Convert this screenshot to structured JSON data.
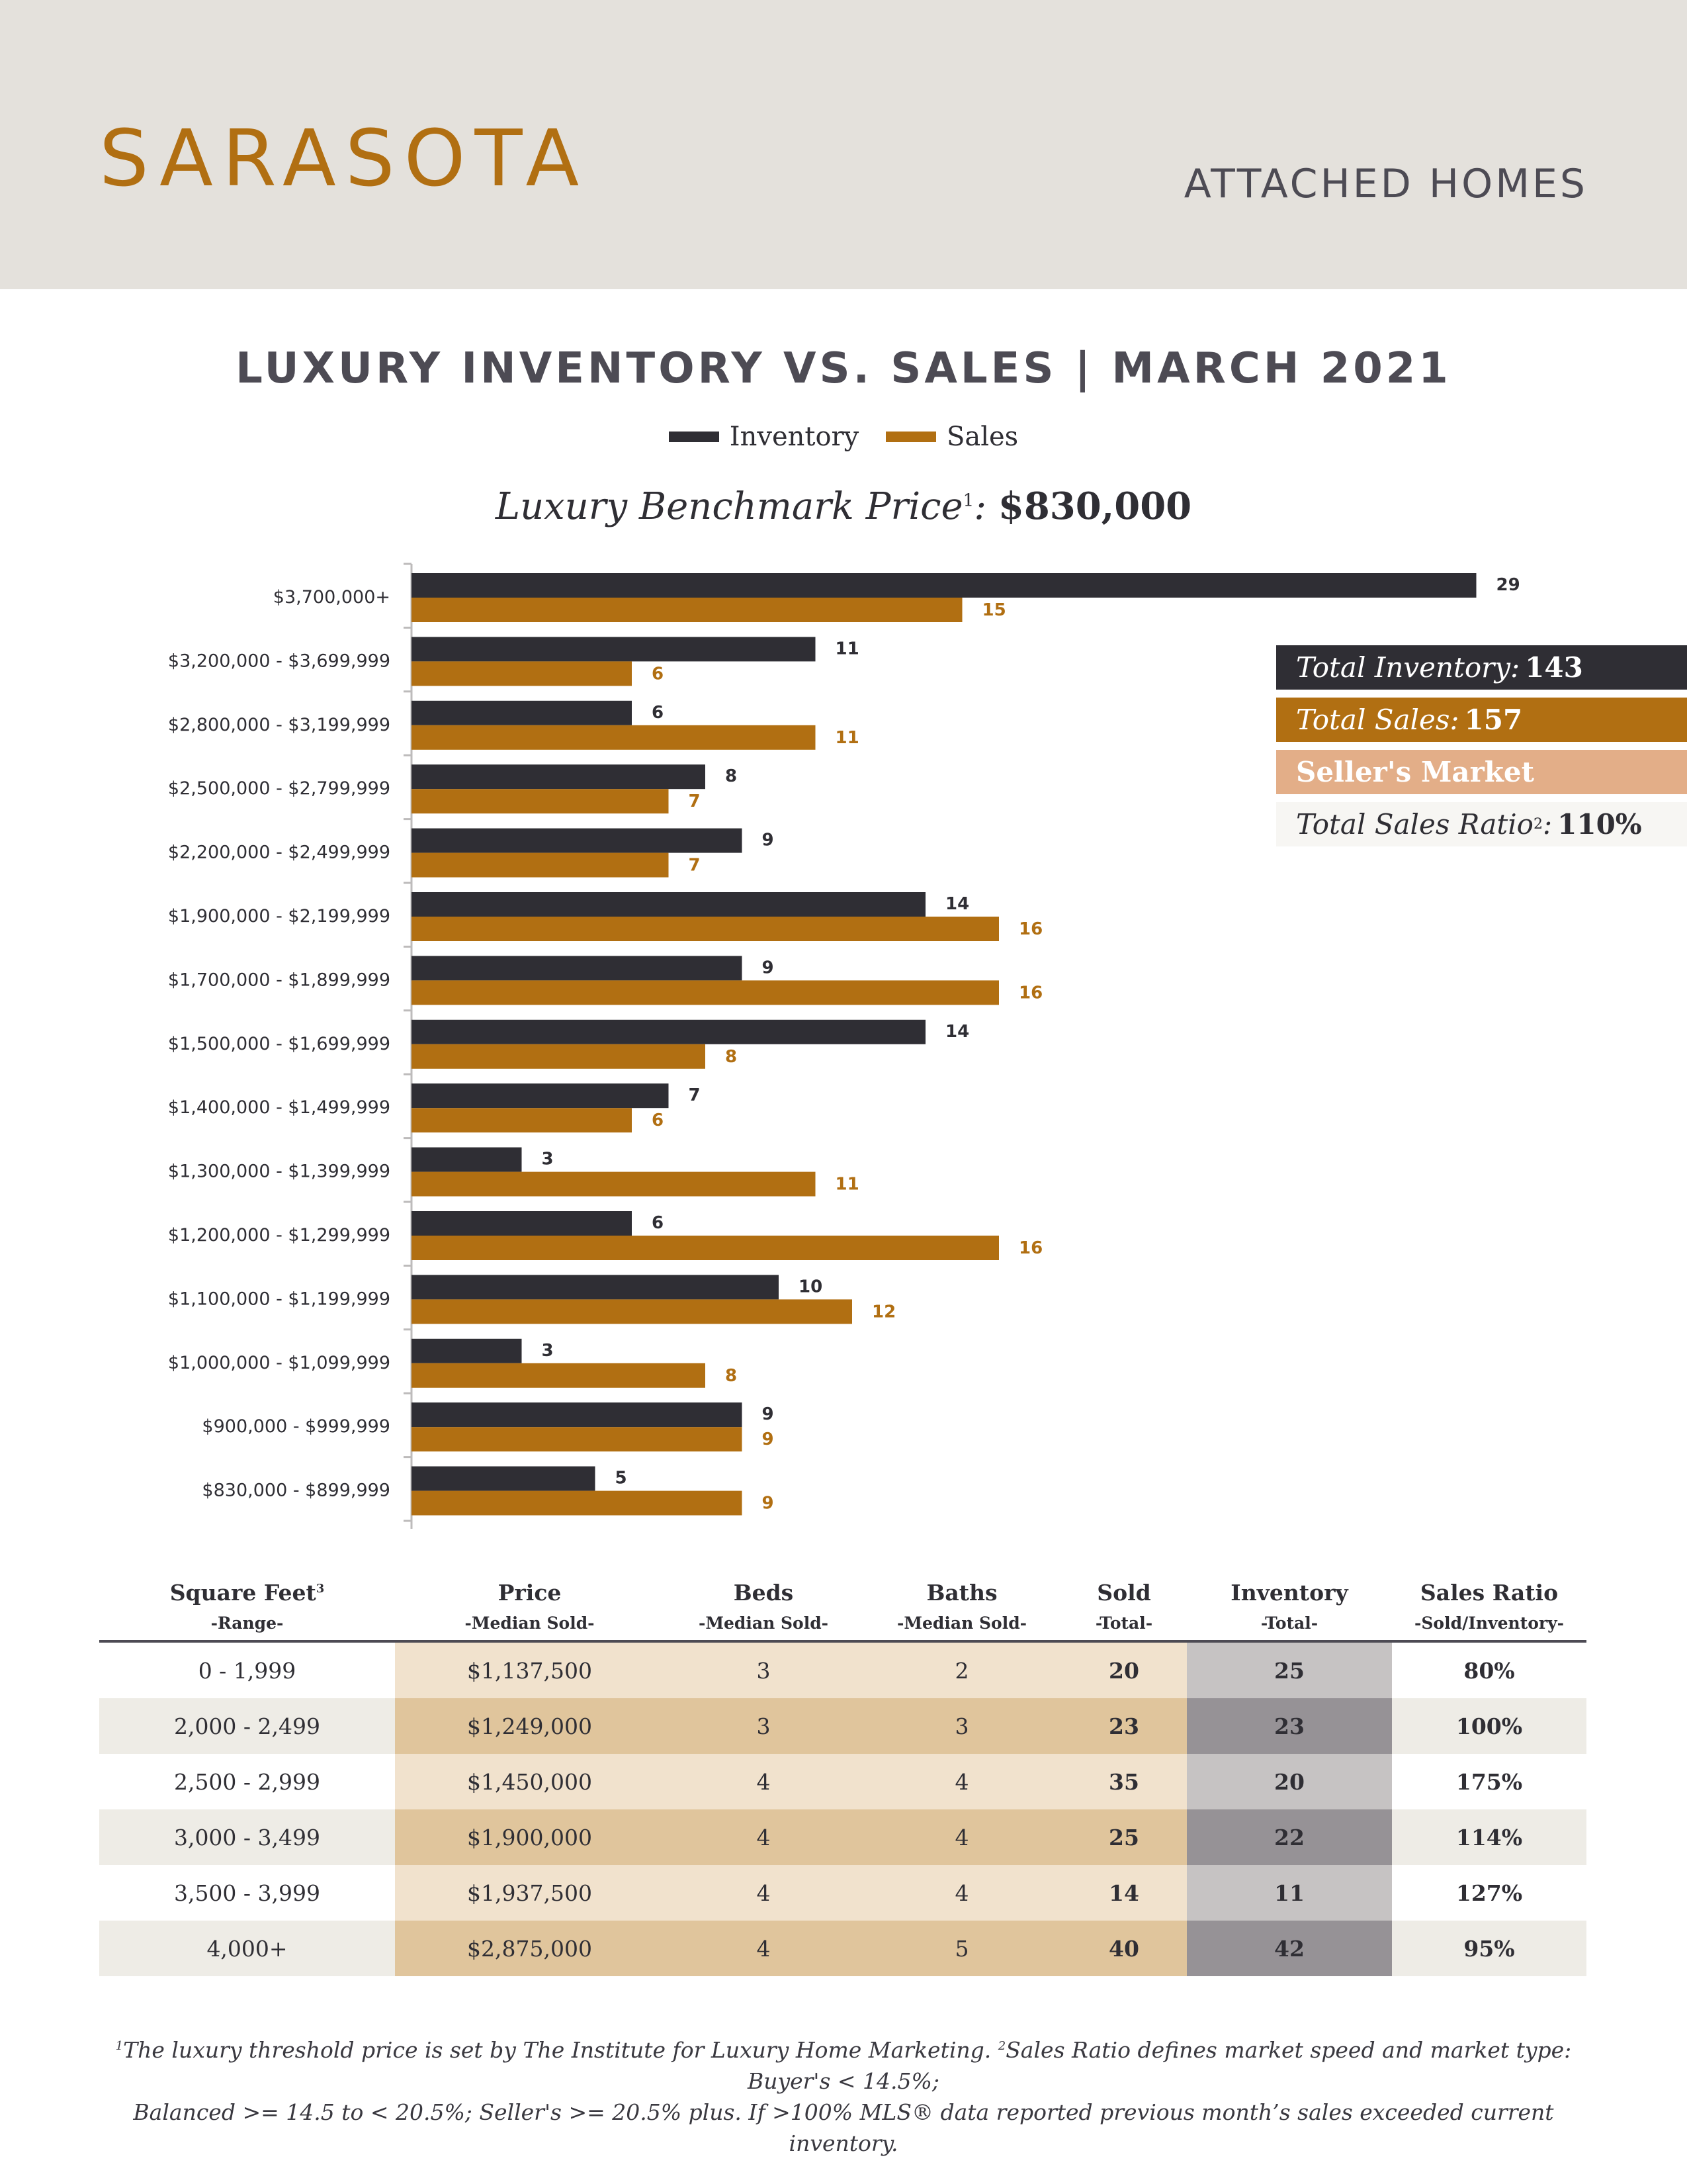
{
  "header": {
    "city": "SARASOTA",
    "segment": "ATTACHED HOMES"
  },
  "benchmark": {
    "label": "Luxury Benchmark Price",
    "sup": "1",
    "value": "$830,000"
  },
  "colors": {
    "inventory": "#2f2e34",
    "sales": "#b16f12",
    "market": "#e3ae88",
    "header_bg": "#e4e1dc"
  },
  "chart_data": {
    "type": "bar",
    "orientation": "horizontal",
    "title": "LUXURY INVENTORY VS. SALES | MARCH 2021",
    "categories": [
      "$3,700,000+",
      "$3,200,000 - $3,699,999",
      "$2,800,000 - $3,199,999",
      "$2,500,000 - $2,799,999",
      "$2,200,000 - $2,499,999",
      "$1,900,000 - $2,199,999",
      "$1,700,000 - $1,899,999",
      "$1,500,000 - $1,699,999",
      "$1,400,000 - $1,499,999",
      "$1,300,000 - $1,399,999",
      "$1,200,000 - $1,299,999",
      "$1,100,000 - $1,199,999",
      "$1,000,000 - $1,099,999",
      "$900,000 - $999,999",
      "$830,000 - $899,999"
    ],
    "series": [
      {
        "name": "Inventory",
        "values": [
          29,
          11,
          6,
          8,
          9,
          14,
          9,
          14,
          7,
          3,
          6,
          10,
          3,
          9,
          5
        ]
      },
      {
        "name": "Sales",
        "values": [
          15,
          6,
          11,
          7,
          7,
          16,
          16,
          8,
          6,
          11,
          16,
          12,
          8,
          9,
          9
        ]
      }
    ],
    "legend_position": "top-center",
    "xlim": [
      0,
      29
    ],
    "grid": false
  },
  "totals": {
    "inventory_label": "Total Inventory:",
    "inventory_value": "143",
    "sales_label": "Total Sales:",
    "sales_value": "157",
    "market": "Seller's Market",
    "ratio_label": "Total Sales Ratio",
    "ratio_sup": "2",
    "ratio_suffix": ":",
    "ratio_value": "110%"
  },
  "table": {
    "headers": [
      {
        "title": "Square Feet",
        "sup": "3",
        "sub": "-Range-"
      },
      {
        "title": "Price",
        "sup": "",
        "sub": "-Median Sold-"
      },
      {
        "title": "Beds",
        "sup": "",
        "sub": "-Median Sold-"
      },
      {
        "title": "Baths",
        "sup": "",
        "sub": "-Median Sold-"
      },
      {
        "title": "Sold",
        "sup": "",
        "sub": "-Total-"
      },
      {
        "title": "Inventory",
        "sup": "",
        "sub": "-Total-"
      },
      {
        "title": "Sales Ratio",
        "sup": "",
        "sub": "-Sold/Inventory-"
      }
    ],
    "rows": [
      [
        "0 - 1,999",
        "$1,137,500",
        "3",
        "2",
        "20",
        "25",
        "80%"
      ],
      [
        "2,000 - 2,499",
        "$1,249,000",
        "3",
        "3",
        "23",
        "23",
        "100%"
      ],
      [
        "2,500 - 2,999",
        "$1,450,000",
        "4",
        "4",
        "35",
        "20",
        "175%"
      ],
      [
        "3,000 - 3,499",
        "$1,900,000",
        "4",
        "4",
        "25",
        "22",
        "114%"
      ],
      [
        "3,500 - 3,999",
        "$1,937,500",
        "4",
        "4",
        "14",
        "11",
        "127%"
      ],
      [
        "4,000+",
        "$2,875,000",
        "4",
        "5",
        "40",
        "42",
        "95%"
      ]
    ]
  },
  "footnote": {
    "sup1": "1",
    "line1a": "The luxury threshold price is set by The Institute for Luxury Home Marketing. ",
    "sup2": "2",
    "line1b": "Sales Ratio defines market speed and market type: Buyer's < 14.5%;",
    "line2": "Balanced >= 14.5 to < 20.5%; Seller's >= 20.5% plus. If >100% MLS® data reported previous month’s sales exceeded current inventory."
  }
}
